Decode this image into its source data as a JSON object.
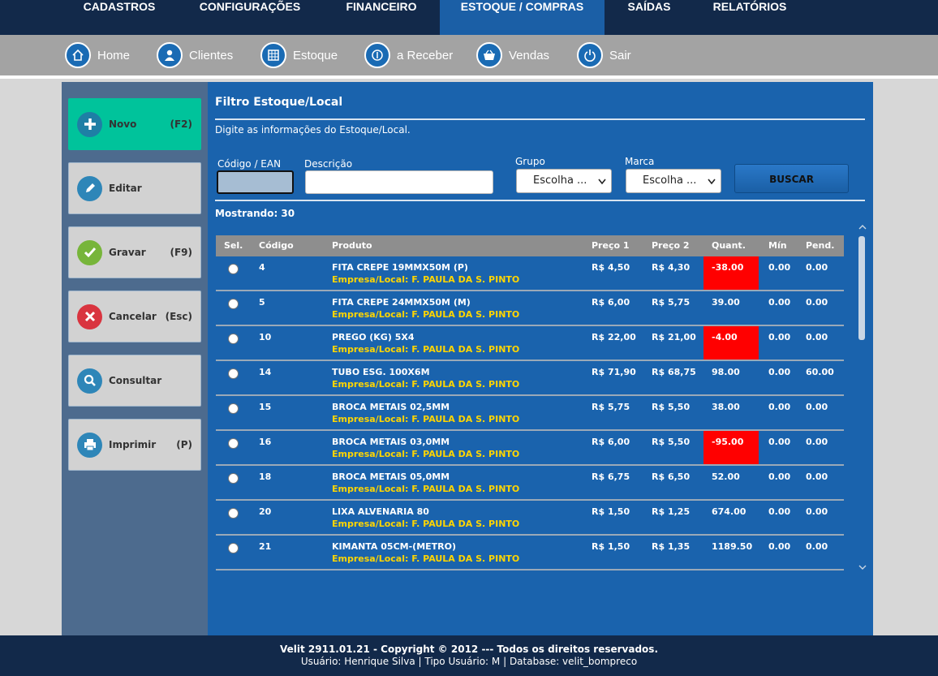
{
  "top_menu": [
    "CADASTROS",
    "CONFIGURAÇÕES",
    "FINANCEIRO",
    "ESTOQUE / COMPRAS",
    "SAÍDAS",
    "RELATÓRIOS"
  ],
  "shortcuts": [
    "Home",
    "Clientes",
    "Estoque",
    "a Receber",
    "Vendas",
    "Sair"
  ],
  "sidebar": [
    {
      "label": "Novo",
      "key": "(F2)"
    },
    {
      "label": "Editar"
    },
    {
      "label": "Gravar",
      "key": "(F9)"
    },
    {
      "label": "Cancelar",
      "key": "(Esc)"
    },
    {
      "label": "Consultar"
    },
    {
      "label": "Imprimir",
      "key": "(P)"
    }
  ],
  "panel": {
    "title": "Filtro Estoque/Local",
    "subtitle": "Digite as informações do Estoque/Local.",
    "fields": {
      "code": "Código / EAN",
      "description": "Descrição",
      "group": "Grupo",
      "brand": "Marca"
    },
    "group_placeholder": "Escolha ...",
    "brand_placeholder": "Escolha ...",
    "button": "BUSCAR",
    "showing": "Mostrando: 30"
  },
  "table": {
    "columns": [
      "Sel.",
      "Código",
      "Produto",
      "Preço 1",
      "Preço 2",
      "Quant.",
      "Mín",
      "Pend."
    ],
    "rows": [
      {
        "code": "4",
        "product": "FITA CREPE 19MMX50M (P)",
        "location": "Empresa/Local: F. PAULA DA S. PINTO",
        "price1": "R$ 4,50",
        "price2": "R$ 4,30",
        "quantity": "-38.00",
        "min": "0.00",
        "pending": "0.00"
      },
      {
        "code": "5",
        "product": "FITA CREPE 24MMX50M (M)",
        "location": "Empresa/Local: F. PAULA DA S. PINTO",
        "price1": "R$ 6,00",
        "price2": "R$ 5,75",
        "quantity": "39.00",
        "min": "0.00",
        "pending": "0.00"
      },
      {
        "code": "10",
        "product": "PREGO (KG) 5X4",
        "location": "Empresa/Local: F. PAULA DA S. PINTO",
        "price1": "R$ 22,00",
        "price2": "R$ 21,00",
        "quantity": "-4.00",
        "min": "0.00",
        "pending": "0.00"
      },
      {
        "code": "14",
        "product": "TUBO ESG. 100X6M",
        "location": "Empresa/Local: F. PAULA DA S. PINTO",
        "price1": "R$ 71,90",
        "price2": "R$ 68,75",
        "quantity": "98.00",
        "min": "0.00",
        "pending": "60.00"
      },
      {
        "code": "15",
        "product": "BROCA METAIS 02,5MM",
        "location": "Empresa/Local: F. PAULA DA S. PINTO",
        "price1": "R$ 5,75",
        "price2": "R$ 5,50",
        "quantity": "38.00",
        "min": "0.00",
        "pending": "0.00"
      },
      {
        "code": "16",
        "product": "BROCA METAIS 03,0MM",
        "location": "Empresa/Local: F. PAULA DA S. PINTO",
        "price1": "R$ 6,00",
        "price2": "R$ 5,50",
        "quantity": "-95.00",
        "min": "0.00",
        "pending": "0.00"
      },
      {
        "code": "18",
        "product": "BROCA METAIS 05,0MM",
        "location": "Empresa/Local: F. PAULA DA S. PINTO",
        "price1": "R$ 6,75",
        "price2": "R$ 6,50",
        "quantity": "52.00",
        "min": "0.00",
        "pending": "0.00"
      },
      {
        "code": "20",
        "product": "LIXA ALVENARIA 80",
        "location": "Empresa/Local: F. PAULA DA S. PINTO",
        "price1": "R$ 1,50",
        "price2": "R$ 1,25",
        "quantity": "674.00",
        "min": "0.00",
        "pending": "0.00"
      },
      {
        "code": "21",
        "product": "KIMANTA 05CM-(METRO)",
        "location": "Empresa/Local: F. PAULA DA S. PINTO",
        "price1": "R$ 1,50",
        "price2": "R$ 1,35",
        "quantity": "1189.50",
        "min": "0.00",
        "pending": "0.00"
      }
    ]
  },
  "footer": {
    "line1": "Velit 2911.01.21 - Copyright © 2012 --- Todos os direitos reservados.",
    "line2": "Usuário: Henrique Silva | Tipo Usuário: M | Database: velit_bompreco"
  }
}
